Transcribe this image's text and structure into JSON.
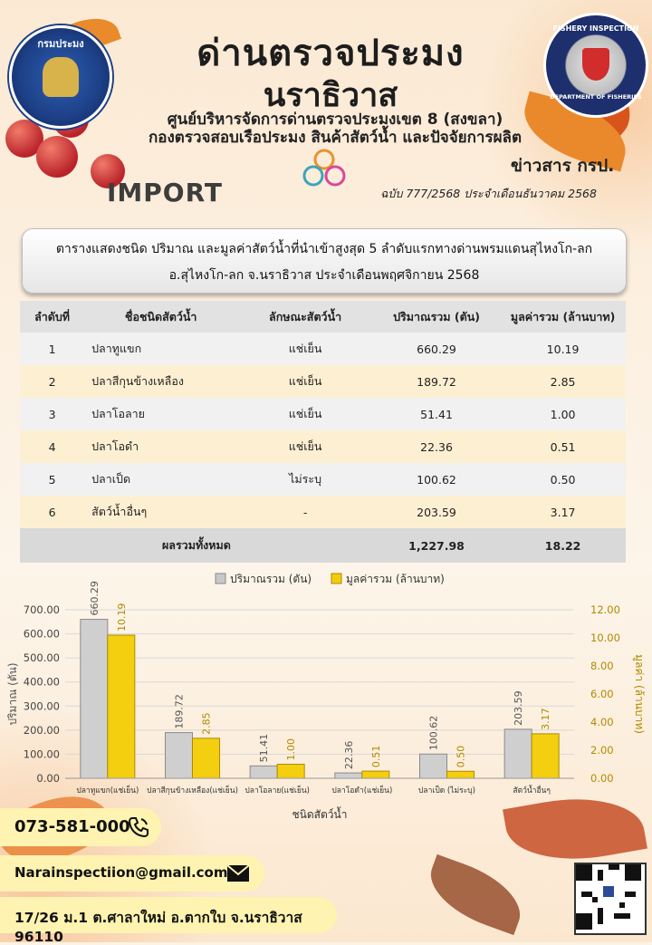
{
  "header": {
    "title_line1": "ด่านตรวจประมง",
    "title_line2": "นราธิวาส",
    "subtitle_line1": "ศูนย์บริหารจัดการด่านตรวจประมงเขต 8 (สงขลา)",
    "subtitle_line2": "กองตรวจสอบเรือประมง สินค้าสัตว์น้ำ และปัจจัยการผลิต",
    "left_logo_text": "กรมประมง",
    "right_logo_text": "FISHERY INSPECTION",
    "right_logo_bottom": "DEPARTMENT OF FISHERIES",
    "section_label": "IMPORT",
    "news_label": "ข่าวสาร กรป.",
    "issue_text": "ฉบับ 777/2568 ประจำเดือนธันวาคม  2568"
  },
  "banner": {
    "line1": "ตารางแสดงชนิด ปริมาณ และมูลค่าสัตว์น้ำที่นำเข้าสูงสุด 5 ลำดับแรกทางด่านพรมแดนสุไหงโก-ลก",
    "line2": "อ.สุไหงโก-ลก จ.นราธิวาส ประจำเดือนพฤศจิกายน  2568"
  },
  "table": {
    "headers": [
      "ลำดับที่",
      "ชื่อชนิดสัตว์น้ำ",
      "ลักษณะสัตว์น้ำ",
      "ปริมาณรวม (ตัน)",
      "มูลค่ารวม (ล้านบาท)"
    ],
    "rows": [
      {
        "no": "1",
        "name": "ปลาทูแขก",
        "type": "แช่เย็น",
        "qty": "660.29",
        "value": "10.19"
      },
      {
        "no": "2",
        "name": "ปลาสีกุนข้างเหลือง",
        "type": "แช่เย็น",
        "qty": "189.72",
        "value": "2.85"
      },
      {
        "no": "3",
        "name": "ปลาโอลาย",
        "type": "แช่เย็น",
        "qty": "51.41",
        "value": "1.00"
      },
      {
        "no": "4",
        "name": "ปลาโอดำ",
        "type": "แช่เย็น",
        "qty": "22.36",
        "value": "0.51"
      },
      {
        "no": "5",
        "name": "ปลาเป็ด",
        "type": "ไม่ระบุ",
        "qty": "100.62",
        "value": "0.50"
      },
      {
        "no": "6",
        "name": "สัตว์น้ำอื่นๆ",
        "type": "-",
        "qty": "203.59",
        "value": "3.17"
      }
    ],
    "total_label": "ผลรวมทั้งหมด",
    "total_qty": "1,227.98",
    "total_value": "18.22"
  },
  "chart_data": {
    "type": "bar",
    "categories": [
      "ปลาทูแขก(แช่เย็น)",
      "ปลาสีกุนข้างเหลือง(แช่เย็น)",
      "ปลาโอลาย(แช่เย็น)",
      "ปลาโอดำ(แช่เย็น)",
      "ปลาเป็ด (ไม่ระบุ)",
      "สัตว์น้ำอื่นๆ"
    ],
    "series": [
      {
        "name": "ปริมาณรวม (ตัน)",
        "values": [
          660.29,
          189.72,
          51.41,
          22.36,
          100.62,
          203.59
        ],
        "axis": "left",
        "color": "#c8c8c8"
      },
      {
        "name": "มูลค่ารวม (ล้านบาท)",
        "values": [
          10.19,
          2.85,
          1.0,
          0.51,
          0.5,
          3.17
        ],
        "axis": "right",
        "color": "#f2cc0c"
      }
    ],
    "value_labels": {
      "left": [
        "660.29",
        "189.72",
        "51.41",
        "22.36",
        "100.62",
        "203.59"
      ],
      "right": [
        "10.19",
        "2.85",
        "1.00",
        "0.51",
        "0.50",
        "3.17"
      ]
    },
    "xlabel": "ชนิดสัตว์น้ำ",
    "ylabel": "ปริมาณ (ตัน)",
    "y2label": "มูลค่า (ล้านบาท)",
    "ylim": [
      0,
      700
    ],
    "y2lim": [
      0,
      12
    ],
    "yticks": [
      "0.00",
      "100.00",
      "200.00",
      "300.00",
      "400.00",
      "500.00",
      "600.00",
      "700.00"
    ],
    "y2ticks": [
      "0.00",
      "2.00",
      "4.00",
      "6.00",
      "8.00",
      "10.00",
      "12.00"
    ],
    "legend": "top",
    "grid": true
  },
  "contact": {
    "phone": "073-581-000",
    "email": "Narainspectiion@gmail.com",
    "address": "17/26 ม.1 ต.ศาลาใหม่ อ.ตากใบ จ.นราธิวาส 96110"
  },
  "icons": [
    "phone-icon",
    "mail-icon",
    "qr-code-icon"
  ]
}
